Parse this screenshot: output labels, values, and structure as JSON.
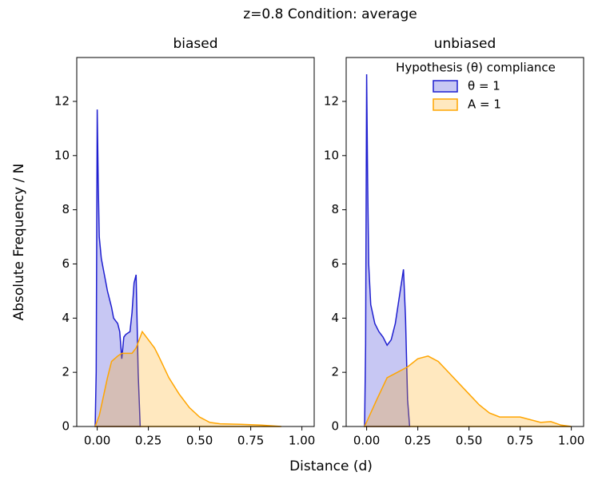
{
  "figure_title": "z=0.8    Condition: average",
  "x_label": "Distance (d)",
  "y_label": "Absolute Frequency / N",
  "chart_data": [
    {
      "type": "area",
      "title": "biased",
      "xlim": [
        -0.1,
        1.06
      ],
      "ylim": [
        0,
        13.62
      ],
      "xticks": [
        {
          "value": 0,
          "label": "0.00"
        },
        {
          "value": 0.25,
          "label": "0.25"
        },
        {
          "value": 0.5,
          "label": "0.50"
        },
        {
          "value": 0.75,
          "label": "0.75"
        },
        {
          "value": 1,
          "label": "1.00"
        }
      ],
      "yticks": [
        0,
        2,
        4,
        6,
        8,
        10,
        12
      ],
      "legend": false,
      "series": [
        {
          "name": "θ = 1",
          "color": "#1f1fd0",
          "x": [
            -0.01,
            -0.005,
            0,
            0.005,
            0.01,
            0.02,
            0.03,
            0.05,
            0.07,
            0.08,
            0.1,
            0.11,
            0.12,
            0.13,
            0.14,
            0.16,
            0.17,
            0.18,
            0.19,
            0.2,
            0.21
          ],
          "values": [
            0,
            2,
            11.7,
            9,
            7,
            6.2,
            5.8,
            5,
            4.4,
            4,
            3.8,
            3.5,
            2.5,
            3.3,
            3.4,
            3.5,
            4.2,
            5.3,
            5.6,
            2,
            0
          ]
        },
        {
          "name": "A = 1",
          "color": "#ffa500",
          "x": [
            -0.01,
            0.01,
            0.03,
            0.05,
            0.07,
            0.1,
            0.12,
            0.15,
            0.17,
            0.19,
            0.2,
            0.22,
            0.25,
            0.28,
            0.3,
            0.35,
            0.4,
            0.45,
            0.5,
            0.55,
            0.6,
            0.7,
            0.8,
            0.9
          ],
          "values": [
            0,
            0.4,
            1.1,
            1.8,
            2.4,
            2.6,
            2.7,
            2.7,
            2.7,
            2.9,
            3.1,
            3.5,
            3.2,
            2.9,
            2.6,
            1.8,
            1.2,
            0.7,
            0.35,
            0.15,
            0.1,
            0.08,
            0.05,
            0
          ]
        }
      ]
    },
    {
      "type": "area",
      "title": "unbiased",
      "xlim": [
        -0.1,
        1.06
      ],
      "ylim": [
        0,
        13.62
      ],
      "xticks": [
        {
          "value": 0,
          "label": "0.00"
        },
        {
          "value": 0.25,
          "label": "0.25"
        },
        {
          "value": 0.5,
          "label": "0.50"
        },
        {
          "value": 0.75,
          "label": "0.75"
        },
        {
          "value": 1,
          "label": "1.00"
        }
      ],
      "yticks": [
        0,
        2,
        4,
        6,
        8,
        10,
        12
      ],
      "legend": true,
      "legend_title": "Hypothesis (θ) compliance",
      "legend_position": "upper right",
      "series": [
        {
          "name": "θ = 1",
          "color": "#1f1fd0",
          "x": [
            -0.01,
            -0.005,
            0,
            0.005,
            0.01,
            0.02,
            0.04,
            0.06,
            0.08,
            0.1,
            0.12,
            0.14,
            0.16,
            0.18,
            0.19,
            0.2,
            0.21
          ],
          "values": [
            0,
            3,
            13,
            9,
            6,
            4.5,
            3.8,
            3.5,
            3.3,
            3.0,
            3.2,
            3.8,
            4.8,
            5.8,
            4,
            1,
            0
          ]
        },
        {
          "name": "A = 1",
          "color": "#ffa500",
          "x": [
            -0.01,
            0.05,
            0.1,
            0.15,
            0.2,
            0.25,
            0.3,
            0.35,
            0.4,
            0.5,
            0.55,
            0.6,
            0.65,
            0.7,
            0.75,
            0.8,
            0.85,
            0.9,
            0.95,
            1.0
          ],
          "values": [
            0,
            1,
            1.8,
            2.0,
            2.2,
            2.5,
            2.6,
            2.4,
            2.0,
            1.2,
            0.8,
            0.5,
            0.35,
            0.35,
            0.35,
            0.25,
            0.15,
            0.18,
            0.05,
            0
          ]
        }
      ]
    }
  ]
}
